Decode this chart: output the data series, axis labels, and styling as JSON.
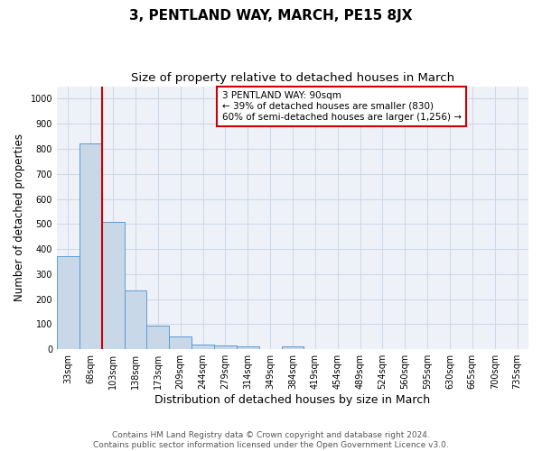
{
  "title": "3, PENTLAND WAY, MARCH, PE15 8JX",
  "subtitle": "Size of property relative to detached houses in March",
  "xlabel": "Distribution of detached houses by size in March",
  "ylabel": "Number of detached properties",
  "bar_labels": [
    "33sqm",
    "68sqm",
    "103sqm",
    "138sqm",
    "173sqm",
    "209sqm",
    "244sqm",
    "279sqm",
    "314sqm",
    "349sqm",
    "384sqm",
    "419sqm",
    "454sqm",
    "489sqm",
    "524sqm",
    "560sqm",
    "595sqm",
    "630sqm",
    "665sqm",
    "700sqm",
    "735sqm"
  ],
  "bar_values": [
    370,
    820,
    510,
    235,
    93,
    50,
    20,
    15,
    10,
    0,
    10,
    0,
    0,
    0,
    0,
    0,
    0,
    0,
    0,
    0,
    0
  ],
  "bar_color": "#c8d8e8",
  "bar_edge_color": "#5b9bd5",
  "grid_color": "#d0d8e8",
  "background_color": "#eef2f8",
  "vline_color": "#cc0000",
  "vline_x": 1.5,
  "annotation_text": "3 PENTLAND WAY: 90sqm\n← 39% of detached houses are smaller (830)\n60% of semi-detached houses are larger (1,256) →",
  "annotation_box_color": "#ffffff",
  "annotation_box_edgecolor": "#cc0000",
  "ylim": [
    0,
    1050
  ],
  "yticks": [
    0,
    100,
    200,
    300,
    400,
    500,
    600,
    700,
    800,
    900,
    1000
  ],
  "footer_text": "Contains HM Land Registry data © Crown copyright and database right 2024.\nContains public sector information licensed under the Open Government Licence v3.0.",
  "title_fontsize": 11,
  "subtitle_fontsize": 9.5,
  "xlabel_fontsize": 9,
  "ylabel_fontsize": 8.5,
  "footer_fontsize": 6.5,
  "tick_fontsize": 7,
  "annotation_fontsize": 7.5
}
